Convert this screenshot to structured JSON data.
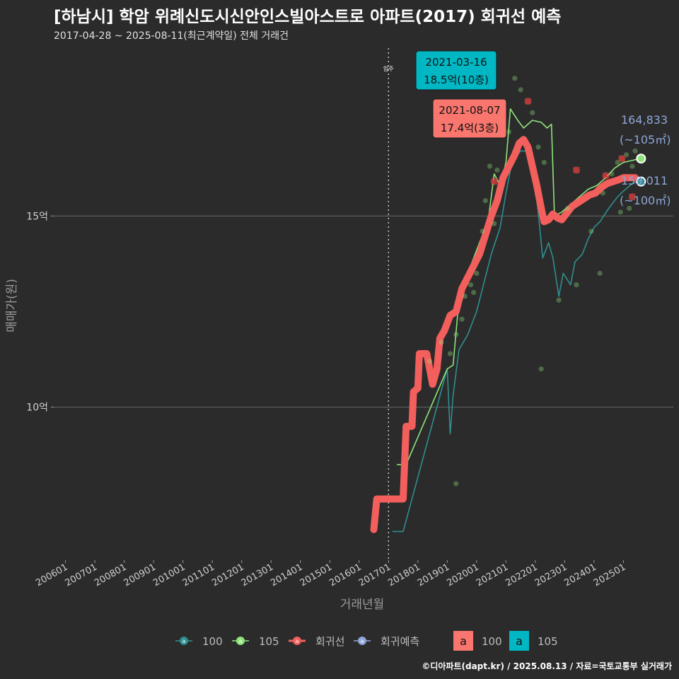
{
  "header": {
    "title": "[하남시] 학암 위례신도시신안인스빌아스트로 아파트(2017) 회귀선 예측",
    "subtitle": "2017-04-28 ~ 2025-08-11(최근계약일) 전체 거래건"
  },
  "credit": "©디아파트(dapt.kr) / 2025.08.13 / 자료=국토교통부 실거래가",
  "colors": {
    "background": "#2b2b2c",
    "s100": "#2f8f8f",
    "s105": "#8fe37a",
    "regression": "#f25f5c",
    "forecast": "#8ea6d6",
    "label100": "#00b7c3",
    "label105": "#f8766d"
  },
  "chart_data": {
    "type": "line",
    "title": "[하남시] 학암 위례신도시신안인스빌아스트로 아파트(2017) 회귀선 예측",
    "xlabel": "거래년월",
    "ylabel": "매매가(원)",
    "x_units": "decimal year",
    "y_units": "억원",
    "xlim": [
      2005.6,
      2026.7
    ],
    "ylim": [
      6.0,
      19.5
    ],
    "x_ticks": [
      {
        "label": "200601",
        "x": 2006.0
      },
      {
        "label": "200701",
        "x": 2007.0
      },
      {
        "label": "200801",
        "x": 2008.0
      },
      {
        "label": "200901",
        "x": 2009.0
      },
      {
        "label": "201001",
        "x": 2010.0
      },
      {
        "label": "201101",
        "x": 2011.0
      },
      {
        "label": "201201",
        "x": 2012.0
      },
      {
        "label": "201301",
        "x": 2013.0
      },
      {
        "label": "201401",
        "x": 2014.0
      },
      {
        "label": "201501",
        "x": 2015.0
      },
      {
        "label": "201601",
        "x": 2016.0
      },
      {
        "label": "201701",
        "x": 2017.0
      },
      {
        "label": "201801",
        "x": 2018.0
      },
      {
        "label": "201901",
        "x": 2019.0
      },
      {
        "label": "202001",
        "x": 2020.0
      },
      {
        "label": "202101",
        "x": 2021.0
      },
      {
        "label": "202201",
        "x": 2022.0
      },
      {
        "label": "202301",
        "x": 2023.0
      },
      {
        "label": "202401",
        "x": 2024.0
      },
      {
        "label": "202501",
        "x": 2025.0
      }
    ],
    "y_ticks": [
      {
        "label": "10억",
        "y": 10
      },
      {
        "label": "15억",
        "y": 15
      }
    ],
    "move_in": {
      "label": "입주",
      "x": 2017.0
    },
    "series": [
      {
        "name": "100",
        "key": "s100",
        "points": [
          [
            2017.15,
            6.75
          ],
          [
            2017.5,
            6.75
          ],
          [
            2019.0,
            11.0
          ],
          [
            2019.1,
            9.3
          ],
          [
            2019.2,
            10.3
          ],
          [
            2019.4,
            11.5
          ],
          [
            2019.7,
            11.9
          ],
          [
            2020.0,
            12.5
          ],
          [
            2020.3,
            13.4
          ],
          [
            2020.5,
            14.0
          ],
          [
            2020.8,
            14.7
          ],
          [
            2021.0,
            15.6
          ],
          [
            2021.2,
            16.4
          ],
          [
            2021.5,
            16.7
          ],
          [
            2021.7,
            16.7
          ],
          [
            2021.9,
            16.3
          ],
          [
            2022.1,
            15.1
          ],
          [
            2022.25,
            13.9
          ],
          [
            2022.45,
            14.3
          ],
          [
            2022.6,
            13.9
          ],
          [
            2022.8,
            12.9
          ],
          [
            2022.95,
            13.5
          ],
          [
            2023.2,
            13.2
          ],
          [
            2023.35,
            13.8
          ],
          [
            2023.6,
            14.0
          ],
          [
            2023.8,
            14.4
          ],
          [
            2024.0,
            14.7
          ],
          [
            2024.2,
            14.85
          ],
          [
            2024.5,
            15.2
          ],
          [
            2024.8,
            15.5
          ],
          [
            2025.0,
            15.65
          ],
          [
            2025.3,
            15.85
          ],
          [
            2025.55,
            15.9
          ]
        ]
      },
      {
        "name": "105",
        "key": "s105",
        "points": [
          [
            2017.3,
            8.5
          ],
          [
            2017.6,
            8.5
          ],
          [
            2019.0,
            11.0
          ],
          [
            2019.2,
            11.1
          ],
          [
            2019.4,
            12.8
          ],
          [
            2019.7,
            13.5
          ],
          [
            2020.0,
            14.1
          ],
          [
            2020.4,
            14.9
          ],
          [
            2020.6,
            16.1
          ],
          [
            2020.8,
            15.8
          ],
          [
            2021.0,
            16.4
          ],
          [
            2021.15,
            17.8
          ],
          [
            2021.4,
            17.5
          ],
          [
            2021.6,
            17.3
          ],
          [
            2021.9,
            17.5
          ],
          [
            2022.2,
            17.45
          ],
          [
            2022.4,
            17.3
          ],
          [
            2022.55,
            17.4
          ],
          [
            2022.65,
            15.0
          ],
          [
            2022.9,
            15.1
          ],
          [
            2023.2,
            15.3
          ],
          [
            2023.5,
            15.5
          ],
          [
            2023.8,
            15.7
          ],
          [
            2024.1,
            15.8
          ],
          [
            2024.4,
            16.0
          ],
          [
            2024.7,
            16.25
          ],
          [
            2025.0,
            16.4
          ],
          [
            2025.3,
            16.45
          ],
          [
            2025.55,
            16.5
          ]
        ]
      },
      {
        "name": "회귀선",
        "key": "regression",
        "points": [
          [
            2016.5,
            6.8
          ],
          [
            2016.6,
            7.6
          ],
          [
            2017.5,
            7.6
          ],
          [
            2017.6,
            9.5
          ],
          [
            2017.8,
            9.5
          ],
          [
            2017.85,
            10.4
          ],
          [
            2018.0,
            10.5
          ],
          [
            2018.05,
            11.4
          ],
          [
            2018.3,
            11.4
          ],
          [
            2018.5,
            10.6
          ],
          [
            2018.65,
            11.0
          ],
          [
            2018.75,
            11.8
          ],
          [
            2018.9,
            12.0
          ],
          [
            2019.1,
            12.4
          ],
          [
            2019.3,
            12.5
          ],
          [
            2019.5,
            13.1
          ],
          [
            2019.7,
            13.4
          ],
          [
            2019.9,
            13.7
          ],
          [
            2020.1,
            14.0
          ],
          [
            2020.3,
            14.5
          ],
          [
            2020.5,
            15.0
          ],
          [
            2020.7,
            15.4
          ],
          [
            2020.9,
            16.0
          ],
          [
            2021.1,
            16.3
          ],
          [
            2021.3,
            16.6
          ],
          [
            2021.45,
            16.9
          ],
          [
            2021.6,
            17.0
          ],
          [
            2021.75,
            16.8
          ],
          [
            2021.9,
            16.3
          ],
          [
            2022.05,
            15.8
          ],
          [
            2022.2,
            15.2
          ],
          [
            2022.3,
            14.85
          ],
          [
            2022.45,
            14.9
          ],
          [
            2022.6,
            15.05
          ],
          [
            2022.75,
            14.95
          ],
          [
            2022.9,
            14.9
          ],
          [
            2023.05,
            15.05
          ],
          [
            2023.25,
            15.25
          ],
          [
            2023.45,
            15.35
          ],
          [
            2023.65,
            15.45
          ],
          [
            2023.85,
            15.55
          ],
          [
            2024.05,
            15.6
          ],
          [
            2024.25,
            15.75
          ],
          [
            2024.45,
            15.85
          ],
          [
            2024.65,
            15.9
          ],
          [
            2024.85,
            15.95
          ],
          [
            2025.0,
            16.0
          ],
          [
            2025.2,
            16.0
          ],
          [
            2025.4,
            16.0
          ]
        ]
      }
    ],
    "scatter": [
      [
        2020.45,
        16.3
      ],
      [
        2020.2,
        14.6
      ],
      [
        2020.0,
        13.5
      ],
      [
        2019.8,
        13.2
      ],
      [
        2019.6,
        12.9
      ],
      [
        2019.5,
        12.3
      ],
      [
        2019.3,
        11.9
      ],
      [
        2019.1,
        11.4
      ],
      [
        2018.8,
        11.7
      ],
      [
        2018.4,
        11.2
      ],
      [
        2020.3,
        15.4
      ],
      [
        2020.7,
        16.2
      ],
      [
        2021.3,
        18.6
      ],
      [
        2021.5,
        18.3
      ],
      [
        2021.9,
        17.7
      ],
      [
        2022.1,
        16.8
      ],
      [
        2022.3,
        16.4
      ],
      [
        2022.8,
        12.8
      ],
      [
        2023.4,
        13.2
      ],
      [
        2023.9,
        14.6
      ],
      [
        2024.2,
        13.5
      ],
      [
        2024.3,
        15.6
      ],
      [
        2024.6,
        16.1
      ],
      [
        2024.8,
        16.4
      ],
      [
        2025.1,
        16.6
      ],
      [
        2025.3,
        16.3
      ],
      [
        2025.4,
        16.7
      ],
      [
        2022.2,
        11.0
      ],
      [
        2019.3,
        8.0
      ],
      [
        2019.9,
        13.0
      ],
      [
        2020.6,
        14.8
      ],
      [
        2021.1,
        17.2
      ],
      [
        2023.1,
        15.2
      ],
      [
        2024.9,
        15.1
      ],
      [
        2025.2,
        15.2
      ]
    ],
    "regression_markers": [
      [
        2020.6,
        15.9
      ],
      [
        2021.75,
        18.0
      ],
      [
        2023.4,
        16.2
      ],
      [
        2024.95,
        16.5
      ],
      [
        2025.3,
        15.5
      ],
      [
        2024.4,
        16.05
      ]
    ],
    "callouts": [
      {
        "key": "label100",
        "date": "2021-03-16",
        "value": "18.5억(10층)",
        "anchor": [
          2021.2,
          18.5
        ]
      },
      {
        "key": "label105",
        "date": "2021-08-07",
        "value": "17.4억(3층)",
        "anchor": [
          2021.6,
          17.4
        ]
      }
    ],
    "end_labels": [
      {
        "key": "s105",
        "value": "164,833",
        "sub": "(~105㎡)",
        "x": 2025.6,
        "y": 16.5
      },
      {
        "key": "s100",
        "value": "159,011",
        "sub": "(~100㎡)",
        "x": 2025.6,
        "y": 15.9
      }
    ],
    "legend": {
      "position": "bottom",
      "line_items": [
        {
          "name": "100",
          "key": "s100",
          "glyph": "a"
        },
        {
          "name": "105",
          "key": "s105",
          "glyph": "a"
        },
        {
          "name": "회귀선",
          "key": "regression",
          "glyph": "a"
        },
        {
          "name": "회귀예측",
          "key": "forecast",
          "glyph": "a"
        }
      ],
      "label_items": [
        {
          "name": "100",
          "key": "label105",
          "glyph": "a"
        },
        {
          "name": "105",
          "key": "label100",
          "glyph": "a"
        }
      ]
    }
  }
}
